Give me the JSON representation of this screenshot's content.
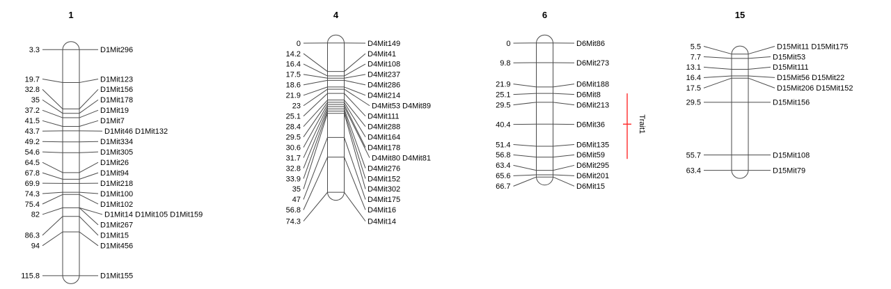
{
  "figure": {
    "type": "genetic-linkage-map",
    "unit": "cM",
    "colors": {
      "background": "#ffffff",
      "line": "#4a4a4a",
      "text": "#000000",
      "trait_bar": "#ff2a2a"
    },
    "chromosomes": [
      {
        "name": "1",
        "rows": [
          {
            "pos": 3.3,
            "pos_label": "3.3",
            "markers": "D1Mit296"
          },
          {
            "pos": 19.7,
            "pos_label": "19.7",
            "markers": "D1Mit123"
          },
          {
            "pos": 32.8,
            "pos_label": "32.8",
            "markers": "D1Mit156"
          },
          {
            "pos": 35,
            "pos_label": "35",
            "markers": "D1Mit178"
          },
          {
            "pos": 37.2,
            "pos_label": "37.2",
            "markers": "D1Mit19"
          },
          {
            "pos": 41.5,
            "pos_label": "41.5",
            "markers": "D1Mit7"
          },
          {
            "pos": 43.7,
            "pos_label": "43.7",
            "markers": "D1Mit46 D1Mit132"
          },
          {
            "pos": 49.2,
            "pos_label": "49.2",
            "markers": "D1Mit334"
          },
          {
            "pos": 54.6,
            "pos_label": "54.6",
            "markers": "D1Mit305"
          },
          {
            "pos": 64.5,
            "pos_label": "64.5",
            "markers": "D1Mit26"
          },
          {
            "pos": 67.8,
            "pos_label": "67.8",
            "markers": "D1Mit94"
          },
          {
            "pos": 69.9,
            "pos_label": "69.9",
            "markers": "D1Mit218"
          },
          {
            "pos": 74.3,
            "pos_label": "74.3",
            "markers": "D1Mit100"
          },
          {
            "pos": 75.4,
            "pos_label": "75.4",
            "markers": "D1Mit102"
          },
          {
            "pos": 82,
            "pos_label": "82",
            "markers": "D1Mit14 D1Mit105 D1Mit159"
          },
          {
            "pos": 82,
            "pos_label": "",
            "markers": "D1Mit267"
          },
          {
            "pos": 86.3,
            "pos_label": "86.3",
            "markers": "D1Mit15"
          },
          {
            "pos": 94,
            "pos_label": "94",
            "markers": "D1Mit456"
          },
          {
            "pos": 115.8,
            "pos_label": "115.8",
            "markers": "D1Mit155"
          }
        ]
      },
      {
        "name": "4",
        "rows": [
          {
            "pos": 0,
            "pos_label": "0",
            "markers": "D4Mit149"
          },
          {
            "pos": 14.2,
            "pos_label": "14.2",
            "markers": "D4Mit41"
          },
          {
            "pos": 16.4,
            "pos_label": "16.4",
            "markers": "D4Mit108"
          },
          {
            "pos": 17.5,
            "pos_label": "17.5",
            "markers": "D4Mit237"
          },
          {
            "pos": 18.6,
            "pos_label": "18.6",
            "markers": "D4Mit286"
          },
          {
            "pos": 21.9,
            "pos_label": "21.9",
            "markers": "D4Mit214"
          },
          {
            "pos": 23,
            "pos_label": "23",
            "markers": "D4Mit53 D4Mit89"
          },
          {
            "pos": 25.1,
            "pos_label": "25.1",
            "markers": "D4Mit111"
          },
          {
            "pos": 28.4,
            "pos_label": "28.4",
            "markers": "D4Mit288"
          },
          {
            "pos": 29.5,
            "pos_label": "29.5",
            "markers": "D4Mit164"
          },
          {
            "pos": 30.6,
            "pos_label": "30.6",
            "markers": "D4Mit178"
          },
          {
            "pos": 31.7,
            "pos_label": "31.7",
            "markers": "D4Mit80 D4Mit81"
          },
          {
            "pos": 32.8,
            "pos_label": "32.8",
            "markers": "D4Mit276"
          },
          {
            "pos": 33.9,
            "pos_label": "33.9",
            "markers": "D4Mit152"
          },
          {
            "pos": 35,
            "pos_label": "35",
            "markers": "D4Mit302"
          },
          {
            "pos": 47,
            "pos_label": "47",
            "markers": "D4Mit175"
          },
          {
            "pos": 56.8,
            "pos_label": "56.8",
            "markers": "D4Mit16"
          },
          {
            "pos": 74.3,
            "pos_label": "74.3",
            "markers": "D4Mit14"
          }
        ]
      },
      {
        "name": "6",
        "rows": [
          {
            "pos": 0,
            "pos_label": "0",
            "markers": "D6Mit86"
          },
          {
            "pos": 9.8,
            "pos_label": "9.8",
            "markers": "D6Mit273"
          },
          {
            "pos": 21.9,
            "pos_label": "21.9",
            "markers": "D6Mit188"
          },
          {
            "pos": 25.1,
            "pos_label": "25.1",
            "markers": "D6Mit8"
          },
          {
            "pos": 29.5,
            "pos_label": "29.5",
            "markers": "D6Mit213"
          },
          {
            "pos": 40.4,
            "pos_label": "40.4",
            "markers": "D6Mit36"
          },
          {
            "pos": 51.4,
            "pos_label": "51.4",
            "markers": "D6Mit135"
          },
          {
            "pos": 56.8,
            "pos_label": "56.8",
            "markers": "D6Mit59"
          },
          {
            "pos": 63.4,
            "pos_label": "63.4",
            "markers": "D6Mit295"
          },
          {
            "pos": 65.6,
            "pos_label": "65.6",
            "markers": "D6Mit201"
          },
          {
            "pos": 66.7,
            "pos_label": "66.7",
            "markers": "D6Mit15"
          }
        ],
        "trait": {
          "label": "Trait1",
          "span_start_cM": 25.1,
          "span_end_cM": 57.7,
          "tick_cM": 40.4
        }
      },
      {
        "name": "15",
        "rows": [
          {
            "pos": 5.5,
            "pos_label": "5.5",
            "markers": "D15Mit11 D15Mit175"
          },
          {
            "pos": 7.7,
            "pos_label": "7.7",
            "markers": "D15Mit53"
          },
          {
            "pos": 13.1,
            "pos_label": "13.1",
            "markers": "D15Mit111"
          },
          {
            "pos": 16.4,
            "pos_label": "16.4",
            "markers": "D15Mit56 D15Mit22"
          },
          {
            "pos": 17.5,
            "pos_label": "17.5",
            "markers": "D15Mit206 D15Mit152"
          },
          {
            "pos": 29.5,
            "pos_label": "29.5",
            "markers": "D15Mit156"
          },
          {
            "pos": 55.7,
            "pos_label": "55.7",
            "markers": "D15Mit108"
          },
          {
            "pos": 63.4,
            "pos_label": "63.4",
            "markers": "D15Mit79"
          }
        ]
      }
    ]
  }
}
